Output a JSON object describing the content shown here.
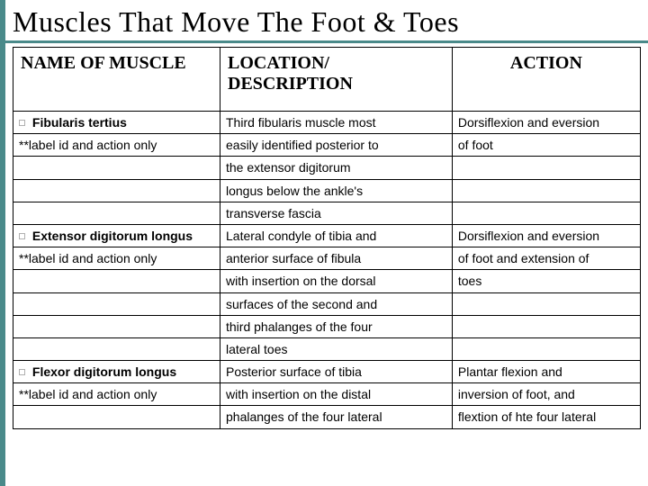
{
  "title": "Muscles That Move The Foot & Toes",
  "headers": {
    "col1": "NAME OF MUSCLE",
    "col2": "LOCATION/ DESCRIPTION",
    "col3": "ACTION"
  },
  "rows": [
    {
      "c1": " Fibularis tertius",
      "c2": " Third fibularis muscle most",
      "c3": " Dorsiflexion and eversion"
    },
    {
      "c1": "**label id and action only",
      "c2": "easily identified posterior to",
      "c3": "of foot"
    },
    {
      "c1": "",
      "c2": "the extensor digitorum",
      "c3": ""
    },
    {
      "c1": "",
      "c2": "longus below the ankle's",
      "c3": ""
    },
    {
      "c1": "",
      "c2": "transverse fascia",
      "c3": ""
    },
    {
      "c1": " Extensor digitorum longus",
      "c2": " Lateral condyle of tibia and",
      "c3": " Dorsiflexion and eversion"
    },
    {
      "c1": "**label id and action only",
      "c2": "anterior surface of fibula",
      "c3": "of foot and extension of"
    },
    {
      "c1": "",
      "c2": "with insertion on the dorsal",
      "c3": "toes"
    },
    {
      "c1": "",
      "c2": "surfaces of the second and",
      "c3": ""
    },
    {
      "c1": "",
      "c2": "third phalanges of the four",
      "c3": ""
    },
    {
      "c1": "",
      "c2": "lateral toes",
      "c3": ""
    },
    {
      "c1": " Flexor digitorum longus",
      "c2": " Posterior surface of tibia",
      "c3": " Plantar flexion and"
    },
    {
      "c1": "**label id and action only",
      "c2": "with insertion on the distal",
      "c3": "inversion of foot, and"
    },
    {
      "c1": "",
      "c2": "phalanges of the four lateral",
      "c3": "flextion of hte four lateral"
    }
  ],
  "muscle_rows": [
    0,
    5,
    11
  ],
  "colors": {
    "accent": "#4a8a8a",
    "border": "#000000",
    "bg": "#ffffff"
  }
}
